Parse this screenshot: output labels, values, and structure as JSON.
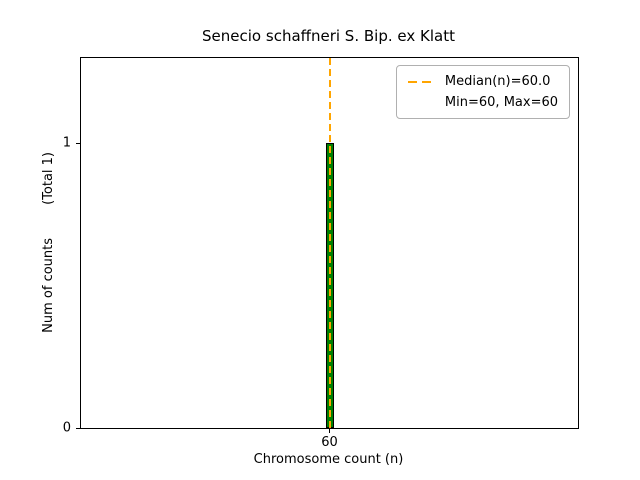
{
  "chart_data": {
    "type": "bar",
    "title": "Senecio schaffneri S. Bip. ex Klatt",
    "xlabel": "Chromosome count (n)",
    "ylabel": "Num of counts        (Total 1)",
    "categories": [
      60
    ],
    "values": [
      1
    ],
    "xlim": [
      59,
      61
    ],
    "ylim": [
      0,
      1.3
    ],
    "xticks": [
      60
    ],
    "yticks": [
      0,
      1
    ],
    "grid": false,
    "bar_color": "#008000",
    "bar_edge_color": "#000000",
    "median_line": {
      "value": 60,
      "color": "#FFA500",
      "style": "dashed"
    },
    "legend_position": "upper right",
    "legend_entries": [
      "Median(n)=60.0",
      "Min=60, Max=60"
    ]
  }
}
